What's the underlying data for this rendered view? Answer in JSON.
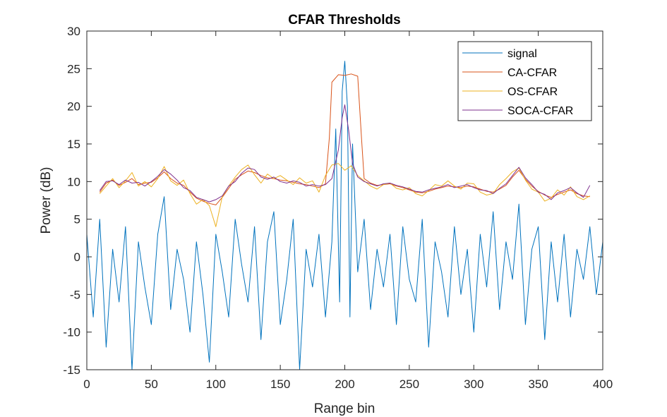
{
  "chart_data": {
    "type": "line",
    "title": "CFAR Thresholds",
    "xlabel": "Range bin",
    "ylabel": "Power (dB)",
    "xlim": [
      0,
      400
    ],
    "ylim": [
      -15,
      30
    ],
    "xticks": [
      0,
      50,
      100,
      150,
      200,
      250,
      300,
      350,
      400
    ],
    "yticks": [
      -15,
      -10,
      -5,
      0,
      5,
      10,
      15,
      20,
      25,
      30
    ],
    "grid": false,
    "legend": "top-right",
    "series": [
      {
        "name": "signal",
        "color": "#0072BD",
        "x": [
          0,
          5,
          10,
          15,
          20,
          25,
          30,
          35,
          40,
          45,
          50,
          55,
          60,
          65,
          70,
          75,
          80,
          85,
          90,
          95,
          100,
          105,
          110,
          115,
          120,
          125,
          130,
          135,
          140,
          145,
          150,
          155,
          160,
          165,
          170,
          175,
          180,
          185,
          190,
          193,
          196,
          198,
          200,
          202,
          204,
          206,
          210,
          215,
          220,
          225,
          230,
          235,
          240,
          245,
          250,
          255,
          260,
          265,
          270,
          275,
          280,
          285,
          290,
          295,
          300,
          305,
          310,
          315,
          320,
          325,
          330,
          335,
          340,
          345,
          350,
          355,
          360,
          365,
          370,
          375,
          380,
          385,
          390,
          395,
          400
        ],
        "y": [
          3,
          -8,
          5,
          -12,
          1,
          -6,
          4,
          -15,
          2,
          -4,
          -9,
          3,
          8,
          -7,
          1,
          -3,
          -10,
          2,
          -5,
          -14,
          3,
          -2,
          -8,
          5,
          -1,
          -6,
          4,
          -11,
          2,
          6,
          -9,
          -3,
          5,
          -15,
          1,
          -4,
          3,
          -8,
          2,
          17,
          -6,
          22,
          26,
          20,
          -8,
          15,
          -2,
          5,
          -7,
          1,
          -4,
          3,
          -9,
          4,
          -3,
          -6,
          5,
          -12,
          2,
          -2,
          -8,
          4,
          -5,
          1,
          -10,
          3,
          -4,
          6,
          -7,
          2,
          -3,
          7,
          -9,
          1,
          4,
          -11,
          2,
          -6,
          3,
          -8,
          1,
          -3,
          4,
          -5,
          2
        ]
      },
      {
        "name": "CA-CFAR",
        "color": "#D95319",
        "x": [
          10,
          15,
          20,
          25,
          30,
          35,
          40,
          45,
          50,
          55,
          60,
          65,
          70,
          75,
          80,
          85,
          90,
          95,
          100,
          105,
          110,
          115,
          120,
          125,
          130,
          135,
          140,
          145,
          150,
          155,
          160,
          165,
          170,
          175,
          180,
          185,
          188,
          190,
          195,
          200,
          205,
          210,
          213,
          215,
          220,
          225,
          230,
          235,
          240,
          245,
          250,
          255,
          260,
          265,
          270,
          275,
          280,
          285,
          290,
          295,
          300,
          305,
          310,
          315,
          320,
          325,
          330,
          335,
          340,
          345,
          350,
          355,
          360,
          365,
          370,
          375,
          380,
          385,
          390
        ],
        "y": [
          8.6,
          9.8,
          10.2,
          9.5,
          9.9,
          10.4,
          9.6,
          9.8,
          9.9,
          10.5,
          11.3,
          10.4,
          9.8,
          9.5,
          8.6,
          7.8,
          7.4,
          7.1,
          6.9,
          7.9,
          9.1,
          10.3,
          10.9,
          11.4,
          11.2,
          10.8,
          10.5,
          10.4,
          10.2,
          10.1,
          9.9,
          9.7,
          9.6,
          9.4,
          9.2,
          9.7,
          15.8,
          23.2,
          24.2,
          24.1,
          24.3,
          24.0,
          15.6,
          10.4,
          9.8,
          9.5,
          9.6,
          9.7,
          9.4,
          9.2,
          8.9,
          8.6,
          8.5,
          8.7,
          9.0,
          9.2,
          9.4,
          9.3,
          9.2,
          9.4,
          9.3,
          9.0,
          8.7,
          8.6,
          9.0,
          9.5,
          10.6,
          11.5,
          10.3,
          9.4,
          8.7,
          8.2,
          7.9,
          8.3,
          8.6,
          8.9,
          8.4,
          8.1,
          8.0
        ]
      },
      {
        "name": "OS-CFAR",
        "color": "#EDB120",
        "x": [
          10,
          15,
          20,
          25,
          30,
          35,
          40,
          45,
          50,
          55,
          60,
          65,
          70,
          75,
          80,
          85,
          90,
          95,
          100,
          105,
          110,
          115,
          120,
          125,
          130,
          135,
          140,
          145,
          150,
          155,
          160,
          165,
          170,
          175,
          180,
          185,
          190,
          195,
          200,
          205,
          210,
          215,
          220,
          225,
          230,
          235,
          240,
          245,
          250,
          255,
          260,
          265,
          270,
          275,
          280,
          285,
          290,
          295,
          300,
          305,
          310,
          315,
          320,
          325,
          330,
          335,
          340,
          345,
          350,
          355,
          360,
          365,
          370,
          375,
          380,
          385,
          390
        ],
        "y": [
          8.4,
          9.4,
          10.4,
          9.2,
          10.1,
          11.2,
          9.4,
          10.0,
          9.3,
          10.4,
          12.0,
          10.1,
          9.5,
          10.2,
          8.4,
          7.0,
          7.6,
          6.8,
          4.0,
          8.0,
          9.4,
          10.6,
          11.6,
          12.2,
          10.9,
          9.8,
          11.0,
          10.4,
          10.8,
          10.2,
          9.6,
          10.5,
          9.8,
          10.1,
          8.6,
          10.8,
          12.2,
          12.4,
          11.5,
          12.1,
          10.8,
          10.1,
          9.4,
          9.0,
          9.6,
          9.8,
          9.1,
          8.9,
          9.2,
          8.4,
          8.1,
          8.8,
          9.6,
          9.4,
          10.1,
          9.4,
          9.0,
          9.8,
          9.7,
          8.6,
          8.2,
          8.4,
          9.6,
          10.4,
          11.3,
          11.8,
          10.2,
          9.0,
          8.6,
          7.4,
          7.8,
          8.9,
          8.2,
          9.3,
          8.0,
          7.6,
          8.1
        ]
      },
      {
        "name": "SOCA-CFAR",
        "color": "#7E2F8E",
        "x": [
          10,
          15,
          20,
          25,
          30,
          35,
          40,
          45,
          50,
          55,
          60,
          65,
          70,
          75,
          80,
          85,
          90,
          95,
          100,
          105,
          110,
          115,
          120,
          125,
          130,
          135,
          140,
          145,
          150,
          155,
          160,
          165,
          170,
          175,
          180,
          185,
          190,
          195,
          198,
          200,
          203,
          206,
          210,
          215,
          220,
          225,
          230,
          235,
          240,
          245,
          250,
          255,
          260,
          265,
          270,
          275,
          280,
          285,
          290,
          295,
          300,
          305,
          310,
          315,
          320,
          325,
          330,
          335,
          340,
          345,
          350,
          355,
          360,
          365,
          370,
          375,
          380,
          385,
          390
        ],
        "y": [
          8.8,
          10.0,
          10.1,
          9.6,
          10.2,
          9.8,
          9.9,
          9.4,
          10.0,
          10.7,
          11.6,
          11.0,
          10.2,
          9.2,
          8.8,
          7.9,
          7.6,
          7.3,
          7.6,
          8.1,
          9.4,
          10.0,
          11.1,
          11.8,
          11.6,
          10.6,
          10.3,
          10.6,
          10.0,
          9.8,
          10.1,
          9.9,
          9.4,
          9.6,
          9.4,
          9.6,
          10.4,
          14.2,
          18.5,
          20.2,
          16.8,
          12.4,
          10.6,
          10.0,
          9.7,
          9.4,
          9.7,
          9.8,
          9.5,
          9.3,
          9.0,
          8.7,
          8.6,
          8.9,
          9.1,
          9.3,
          9.6,
          9.2,
          9.4,
          9.6,
          9.2,
          8.9,
          8.8,
          8.4,
          9.1,
          9.7,
          10.8,
          11.9,
          10.5,
          9.6,
          8.6,
          8.3,
          7.6,
          8.5,
          8.8,
          9.2,
          8.5,
          7.9,
          9.5
        ]
      }
    ]
  }
}
